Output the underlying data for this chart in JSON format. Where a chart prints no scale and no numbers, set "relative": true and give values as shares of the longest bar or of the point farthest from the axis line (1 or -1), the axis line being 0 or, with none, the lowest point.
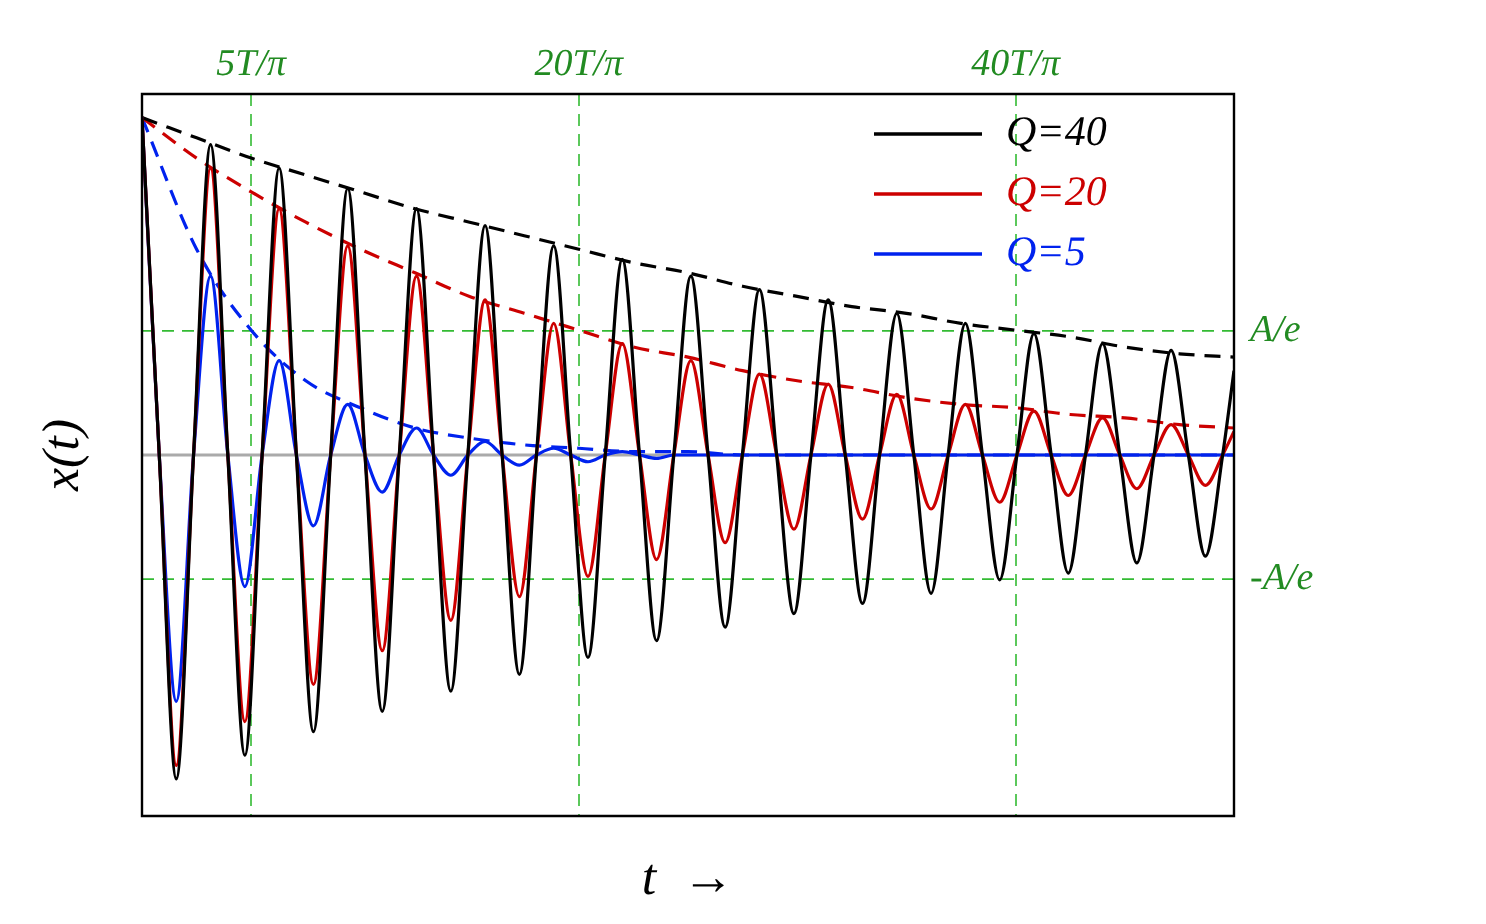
{
  "chart_data": {
    "type": "line",
    "xlabel": "t  →",
    "ylabel": "x(t)",
    "x": [
      0,
      0.79,
      1.57,
      2.36,
      3.14,
      3.93,
      4.71,
      5.5,
      6.28,
      7.07,
      7.85,
      8.64,
      9.42,
      10.21,
      11.0,
      11.78,
      12.57,
      13.35,
      14.14,
      14.92,
      15.71,
      16.49,
      17.28,
      18.06,
      18.85,
      19.63,
      20.42,
      21.21,
      21.99,
      22.78,
      23.56,
      24.35,
      25.13,
      25.92,
      26.7,
      27.49,
      28.27,
      29.06,
      29.85,
      30.63,
      31.42,
      32.2,
      32.99,
      33.77,
      34.56,
      35.34,
      36.13,
      36.91,
      37.7,
      38.48,
      39.27,
      40.06,
      40.84,
      41.63,
      42.41,
      43.2,
      43.98,
      44.77,
      45.55,
      46.34,
      47.12,
      47.91,
      48.69,
      49.48,
      50
    ],
    "series": [
      {
        "name": "Q=40",
        "color": "#000000",
        "values": [
          1,
          0,
          -0.96,
          0,
          0.92,
          0,
          -0.89,
          0,
          0.85,
          0,
          -0.82,
          0,
          0.79,
          0,
          -0.76,
          0,
          0.73,
          0,
          -0.7,
          0,
          0.68,
          0,
          -0.65,
          0,
          0.62,
          0,
          -0.6,
          0,
          0.58,
          0,
          -0.55,
          0,
          0.53,
          0,
          -0.51,
          0,
          0.49,
          0,
          -0.47,
          0,
          0.46,
          0,
          -0.44,
          0,
          0.42,
          0,
          -0.41,
          0,
          0.39,
          0,
          -0.37,
          0,
          0.36,
          0,
          -0.35,
          0,
          0.33,
          0,
          -0.32,
          0,
          0.31,
          0,
          -0.3,
          0,
          0.25
        ]
      },
      {
        "name": "Q=20",
        "color": "#cc0000",
        "values": [
          1,
          0,
          -0.92,
          0,
          0.85,
          0,
          -0.79,
          0,
          0.73,
          0,
          -0.68,
          0,
          0.62,
          0,
          -0.58,
          0,
          0.53,
          0,
          -0.49,
          0,
          0.46,
          0,
          -0.42,
          0,
          0.39,
          0,
          -0.36,
          0,
          0.33,
          0,
          -0.31,
          0,
          0.28,
          0,
          -0.26,
          0,
          0.24,
          0,
          -0.22,
          0,
          0.21,
          0,
          -0.19,
          0,
          0.18,
          0,
          -0.16,
          0,
          0.15,
          0,
          -0.14,
          0,
          0.13,
          0,
          -0.12,
          0,
          0.11,
          0,
          -0.1,
          0,
          0.09,
          0,
          -0.09,
          0,
          0.07
        ]
      },
      {
        "name": "Q=5",
        "color": "#0022ee",
        "values": [
          1,
          0,
          -0.73,
          0,
          0.53,
          0,
          -0.39,
          0,
          0.28,
          0,
          -0.21,
          0,
          0.15,
          0,
          -0.11,
          0,
          0.08,
          0,
          -0.06,
          0,
          0.04,
          0,
          -0.03,
          0,
          0.02,
          0,
          -0.02,
          0,
          0.01,
          0,
          -0.01,
          0,
          0,
          0,
          0,
          0,
          0,
          0,
          0,
          0,
          0,
          0,
          0,
          0,
          0,
          0,
          0,
          0,
          0,
          0,
          0,
          0,
          0,
          0,
          0,
          0,
          0,
          0,
          0,
          0,
          0,
          0,
          0,
          0,
          0
        ]
      },
      {
        "color": "#000000",
        "line_style": "dashed",
        "x": [
          0,
          2.5,
          5,
          7.5,
          10,
          12.5,
          15,
          17.5,
          20,
          22.5,
          25,
          27.5,
          30,
          32.5,
          35,
          37.5,
          40,
          42.5,
          45,
          47.5,
          50
        ],
        "values": [
          1,
          0.94,
          0.88,
          0.83,
          0.78,
          0.73,
          0.69,
          0.65,
          0.61,
          0.57,
          0.54,
          0.5,
          0.47,
          0.44,
          0.42,
          0.39,
          0.37,
          0.35,
          0.32,
          0.3,
          0.29
        ]
      },
      {
        "color": "#cc0000",
        "line_style": "dashed",
        "x": [
          0,
          2.5,
          5,
          7.5,
          10,
          12.5,
          15,
          17.5,
          20,
          22.5,
          25,
          27.5,
          30,
          32.5,
          35,
          37.5,
          40,
          42.5,
          45,
          47.5,
          50
        ],
        "values": [
          1,
          0.88,
          0.78,
          0.69,
          0.61,
          0.54,
          0.47,
          0.42,
          0.37,
          0.32,
          0.29,
          0.25,
          0.22,
          0.2,
          0.17,
          0.15,
          0.14,
          0.12,
          0.11,
          0.09,
          0.08
        ]
      },
      {
        "color": "#0022ee",
        "line_style": "dashed",
        "x": [
          0,
          2.5,
          5,
          7.5,
          10,
          12.5,
          15,
          17.5,
          20,
          22.5,
          25,
          27.5,
          30,
          32.5,
          35,
          37.5,
          40,
          42.5,
          45,
          47.5,
          50
        ],
        "values": [
          1,
          0.61,
          0.37,
          0.22,
          0.14,
          0.08,
          0.05,
          0.03,
          0.02,
          0.01,
          0.01,
          0,
          0,
          0,
          0,
          0,
          0,
          0,
          0,
          0,
          0
        ]
      }
    ],
    "xlim": [
      0,
      50
    ],
    "xticks": [
      {
        "value": 5,
        "label": "5T/π"
      },
      {
        "value": 20,
        "label": "20T/π"
      },
      {
        "value": 40,
        "label": "40T/π"
      }
    ],
    "relative": true,
    "ref_lines": [
      {
        "axis": "y",
        "value": 0,
        "color": "#aaaaaa"
      },
      {
        "axis": "y",
        "value": 0.368,
        "label": "A/e",
        "color": "#33bb33",
        "line_style": "dashed"
      },
      {
        "axis": "y",
        "value": -0.368,
        "label": "-A/e",
        "color": "#33bb33",
        "line_style": "dashed"
      }
    ],
    "grid": "x",
    "legend": "top right",
    "marker": "none",
    "line_style": "solid"
  }
}
